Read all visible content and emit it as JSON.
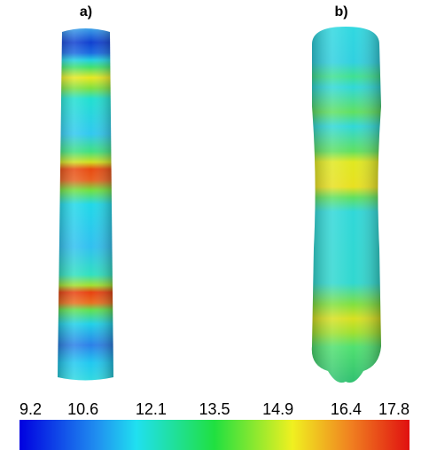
{
  "panels": [
    {
      "label": "a)"
    },
    {
      "label": "b)"
    }
  ],
  "colorbar": {
    "ticks": [
      9.2,
      10.6,
      12.1,
      13.5,
      14.9,
      16.4,
      17.8
    ]
  }
}
